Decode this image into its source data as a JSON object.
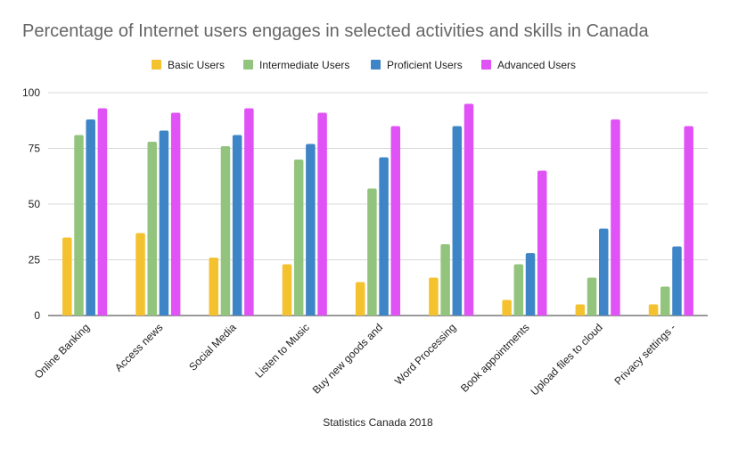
{
  "chart_data": {
    "type": "bar",
    "title": "Percentage of Internet users engages in selected activities and skills in Canada",
    "xlabel": "Statistics Canada 2018",
    "ylabel": "",
    "ylim": [
      0,
      100
    ],
    "yticks": [
      0,
      25,
      50,
      75,
      100
    ],
    "grid": true,
    "legend_position": "top",
    "categories": [
      "Online Banking",
      "Access news",
      "Social Media",
      "Listen to Music",
      "Buy new goods and",
      "Word Processing",
      "Book appointments",
      "Upload files to cloud",
      "Privacy settings -"
    ],
    "series": [
      {
        "name": "Basic Users",
        "color": "#f4c12f",
        "values": [
          35,
          37,
          26,
          23,
          15,
          17,
          7,
          5,
          5
        ]
      },
      {
        "name": "Intermediate Users",
        "color": "#93c47d",
        "values": [
          81,
          78,
          76,
          70,
          57,
          32,
          23,
          17,
          13
        ]
      },
      {
        "name": "Proficient Users",
        "color": "#3d85c6",
        "values": [
          88,
          83,
          81,
          77,
          71,
          85,
          28,
          39,
          31
        ]
      },
      {
        "name": "Advanced Users",
        "color": "#e052f5",
        "values": [
          93,
          91,
          93,
          91,
          85,
          95,
          65,
          88,
          85
        ]
      }
    ]
  }
}
